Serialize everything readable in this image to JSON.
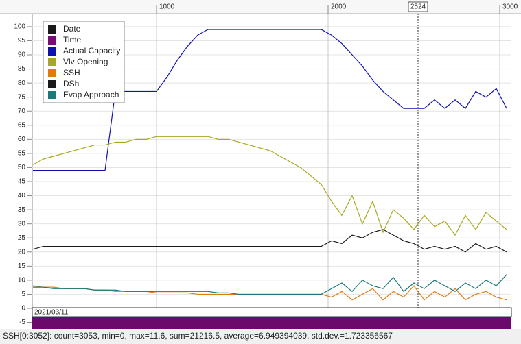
{
  "chart_data": {
    "type": "line",
    "x": [
      280,
      340,
      400,
      460,
      520,
      580,
      640,
      700,
      760,
      820,
      880,
      940,
      1000,
      1060,
      1120,
      1180,
      1240,
      1300,
      1360,
      1420,
      1480,
      1540,
      1600,
      1660,
      1720,
      1780,
      1840,
      1900,
      1960,
      2020,
      2080,
      2140,
      2200,
      2260,
      2320,
      2380,
      2440,
      2500,
      2560,
      2620,
      2680,
      2740,
      2800,
      2860,
      2920,
      2980,
      3040
    ],
    "series": [
      {
        "name": "Date",
        "color": "#1a1a1a"
      },
      {
        "name": "Time",
        "color": "#7a0c7a"
      },
      {
        "name": "Actual Capacity",
        "color": "#1010b0",
        "values": [
          49,
          49,
          49,
          49,
          49,
          49,
          49,
          49,
          77,
          77,
          77,
          77,
          77,
          82,
          88,
          93,
          97,
          99,
          99,
          99,
          99,
          99,
          99,
          99,
          99,
          99,
          99,
          99,
          99,
          97,
          94,
          90,
          86,
          81,
          77,
          74,
          71,
          71,
          71,
          74,
          71,
          74,
          71,
          77,
          75,
          78,
          71
        ]
      },
      {
        "name": "Vlv Opening",
        "color": "#a8a820",
        "values": [
          51,
          53,
          54,
          55,
          56,
          57,
          58,
          58,
          59,
          59,
          60,
          60,
          61,
          61,
          61,
          61,
          61,
          61,
          60,
          60,
          59,
          58,
          57,
          56,
          54,
          52,
          50,
          47,
          44,
          38,
          33,
          40,
          30,
          38,
          27,
          35,
          32,
          28,
          33,
          29,
          31,
          26,
          33,
          28,
          34,
          31,
          28
        ]
      },
      {
        "name": "SSH",
        "color": "#e07b12",
        "values": [
          8,
          7.5,
          7.5,
          7,
          7,
          7,
          6.5,
          6.5,
          6,
          6,
          6,
          6,
          5.5,
          5.5,
          5.5,
          5.5,
          5,
          5,
          5,
          5,
          5,
          5,
          5,
          5,
          5,
          5,
          5,
          5,
          5,
          4,
          6,
          3,
          5,
          7,
          3,
          6,
          4,
          8,
          3,
          6,
          4,
          7,
          3,
          5,
          6,
          4,
          3
        ]
      },
      {
        "name": "DSh",
        "color": "#1a1a1a",
        "values": [
          21,
          22,
          22,
          22,
          22,
          22,
          22,
          22,
          22,
          22,
          22,
          22,
          22,
          22,
          22,
          22,
          22,
          22,
          22,
          22,
          22,
          22,
          22,
          22,
          22,
          22,
          22,
          22,
          22,
          24,
          23,
          26,
          25,
          27,
          28,
          26,
          24,
          23,
          21,
          22,
          21,
          22,
          20,
          23,
          21,
          22,
          20
        ]
      },
      {
        "name": "Evap Approach",
        "color": "#1a7a7a",
        "values": [
          7.5,
          7.5,
          7,
          7,
          7,
          7,
          6.5,
          6.5,
          6.5,
          6,
          6,
          6,
          6,
          6,
          6,
          6,
          6,
          6,
          5.5,
          5.5,
          5,
          5,
          5,
          5,
          5,
          5,
          5,
          5,
          5,
          7,
          9,
          6,
          10,
          8,
          7,
          11,
          6,
          9,
          7,
          10,
          8,
          6,
          9,
          7,
          10,
          8,
          12
        ]
      }
    ],
    "xlim": [
      276,
      3068
    ],
    "xticks": [
      1000,
      2000,
      3000
    ],
    "ylim": [
      -7.3,
      104.6
    ],
    "yticks": [
      100,
      95,
      90,
      85,
      80,
      75,
      70,
      65,
      60,
      55,
      50,
      45,
      40,
      35,
      30,
      25,
      20,
      15,
      10,
      5,
      0,
      -5
    ],
    "grid": true,
    "legend": "upper left",
    "cursor": 2524,
    "date": "2021/03/11",
    "status": "SSH[0:3052]: count=3053, min=0, max=11.6, sum=21216.5, average=6.949394039, std.dev.=1.723356567"
  }
}
